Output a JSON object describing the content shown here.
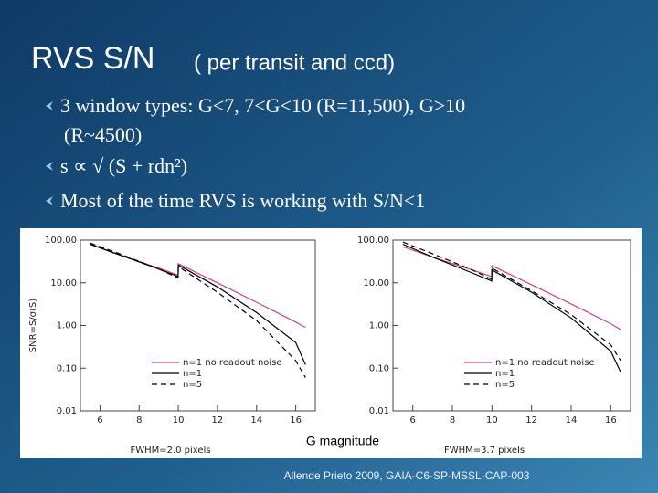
{
  "slide": {
    "title": "RVS S/N",
    "title_note": "( per transit and ccd)",
    "bullets": [
      "3 window types: G<7, 7<G<10 (R=11,500), G>10",
      "(R~4500)",
      "s ∝ √ (S + rdn²)",
      "Most of the time RVS is working with S/N<1"
    ],
    "xlabel": "G magnitude",
    "caption": "Allende Prieto 2009, GAIA-C6-SP-MSSL-CAP-003"
  },
  "chart_data": [
    {
      "type": "line",
      "subtitle": "FWHM=2.0 pixels",
      "ylabel": "SNR=S/σ(S)",
      "log_y": true,
      "x": [
        5.5,
        7,
        9,
        9.99,
        10,
        12,
        14,
        16,
        16.5
      ],
      "xlim": [
        5,
        17
      ],
      "xticks": [
        6,
        8,
        10,
        12,
        14,
        16
      ],
      "ylim": [
        0.01,
        100
      ],
      "yticks": [
        {
          "value": 0.01,
          "label": "0.01"
        },
        {
          "value": 0.1,
          "label": "0.10"
        },
        {
          "value": 1,
          "label": "1.00"
        },
        {
          "value": 10,
          "label": "10.00"
        },
        {
          "value": 100,
          "label": "100.00"
        }
      ],
      "series": [
        {
          "name": "n=1 no readout noise",
          "color": "#d0408a",
          "dash": false,
          "values": [
            80,
            45,
            22,
            15,
            28,
            10,
            3.5,
            1.2,
            0.9
          ]
        },
        {
          "name": "n=1",
          "color": "#000000",
          "dash": false,
          "values": [
            80,
            45,
            21,
            14,
            26,
            8,
            2,
            0.4,
            0.12
          ]
        },
        {
          "name": "n=5",
          "color": "#000000",
          "dash": true,
          "values": [
            85,
            48,
            21,
            13,
            24,
            6,
            1.3,
            0.15,
            0.06
          ]
        }
      ]
    },
    {
      "type": "line",
      "subtitle": "FWHM=3.7 pixels",
      "log_y": true,
      "x": [
        5.5,
        7,
        9,
        9.99,
        10,
        12,
        14,
        16,
        16.5
      ],
      "xlim": [
        5,
        17
      ],
      "xticks": [
        6,
        8,
        10,
        12,
        14,
        16
      ],
      "ylim": [
        0.01,
        100
      ],
      "yticks": [
        {
          "value": 0.01,
          "label": "0.01"
        },
        {
          "value": 0.1,
          "label": "0.10"
        },
        {
          "value": 1,
          "label": "1.00"
        },
        {
          "value": 10,
          "label": "10.00"
        },
        {
          "value": 100,
          "label": "100.00"
        }
      ],
      "series": [
        {
          "name": "n=1 no readout noise",
          "color": "#d0408a",
          "dash": false,
          "values": [
            70,
            40,
            20,
            14,
            25,
            9,
            3.2,
            1.1,
            0.8
          ]
        },
        {
          "name": "n=1",
          "color": "#000000",
          "dash": false,
          "values": [
            80,
            40,
            17,
            11,
            20,
            6,
            1.5,
            0.25,
            0.08
          ]
        },
        {
          "name": "n=5",
          "color": "#000000",
          "dash": true,
          "values": [
            90,
            48,
            20,
            12,
            22,
            6.5,
            1.8,
            0.35,
            0.15
          ]
        }
      ]
    }
  ]
}
